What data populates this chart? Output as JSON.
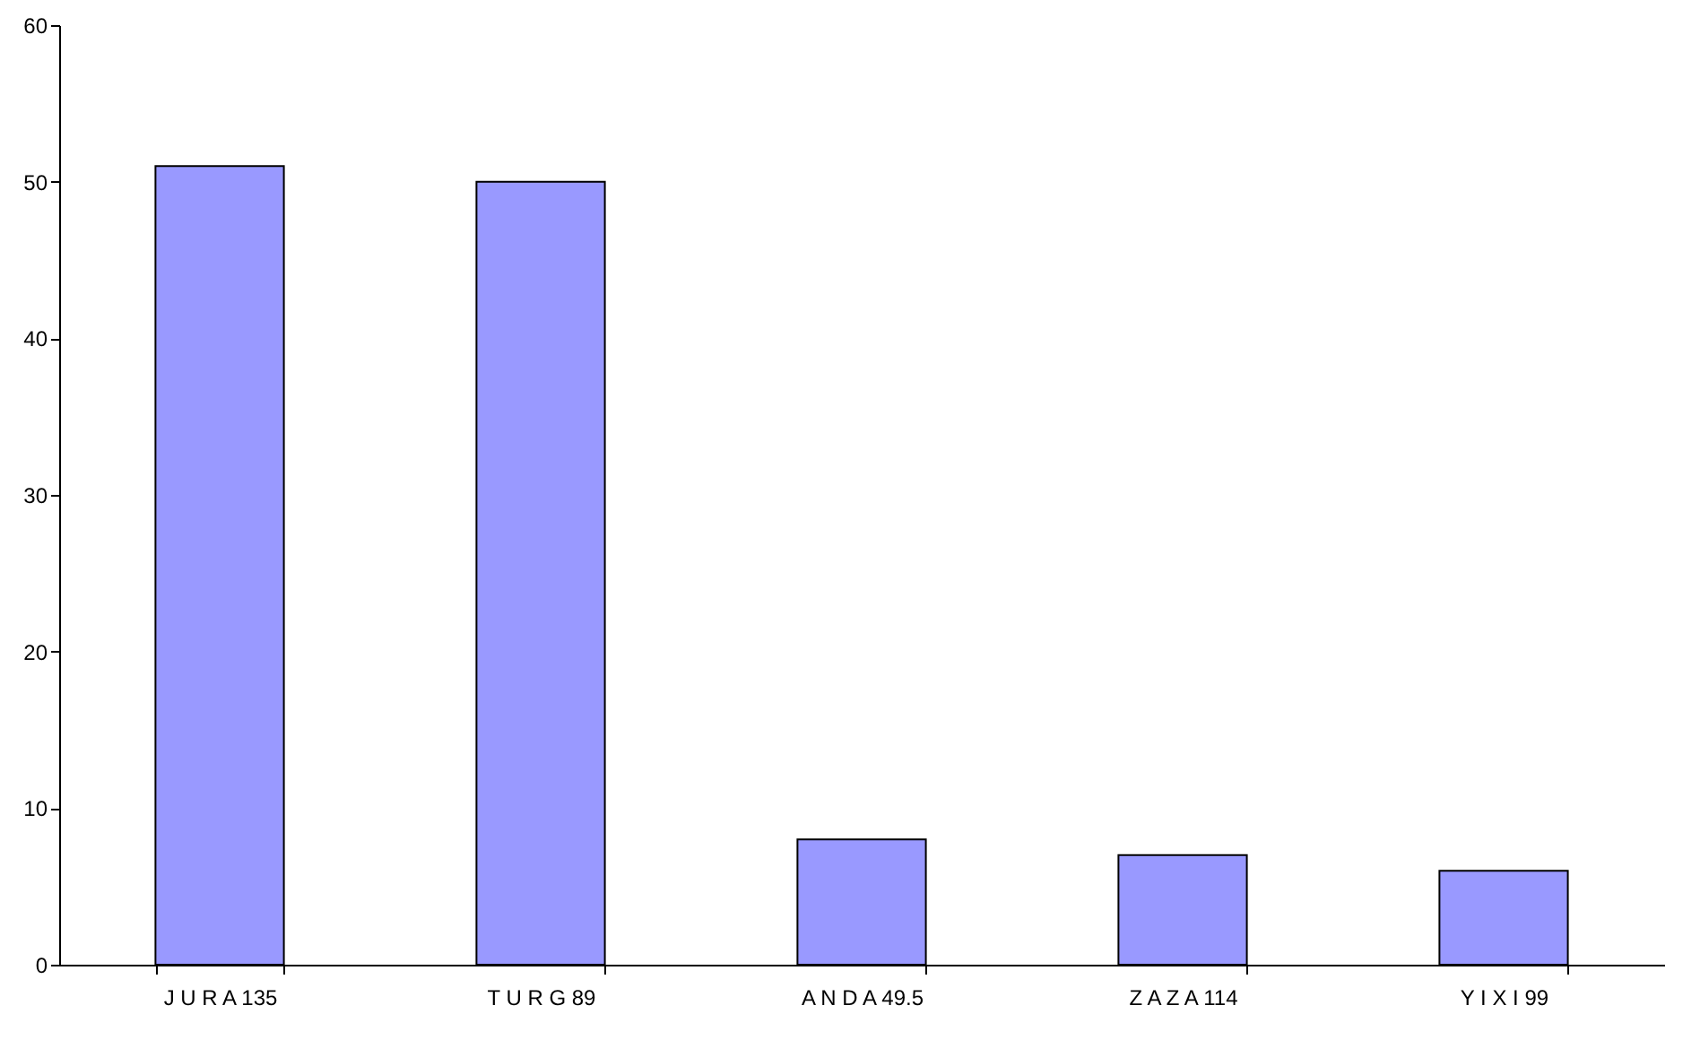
{
  "chart_data": {
    "type": "bar",
    "categories": [
      "J U R A 135",
      "T U R G 89",
      "A N D A 49.5",
      "Z A Z A 114",
      "Y I X I 99"
    ],
    "values": [
      51,
      50,
      8,
      7,
      6
    ],
    "color": "#9999ff",
    "ylim": [
      0,
      60
    ],
    "yticks": [
      0,
      10,
      20,
      30,
      40,
      50,
      60
    ],
    "grid": false
  }
}
